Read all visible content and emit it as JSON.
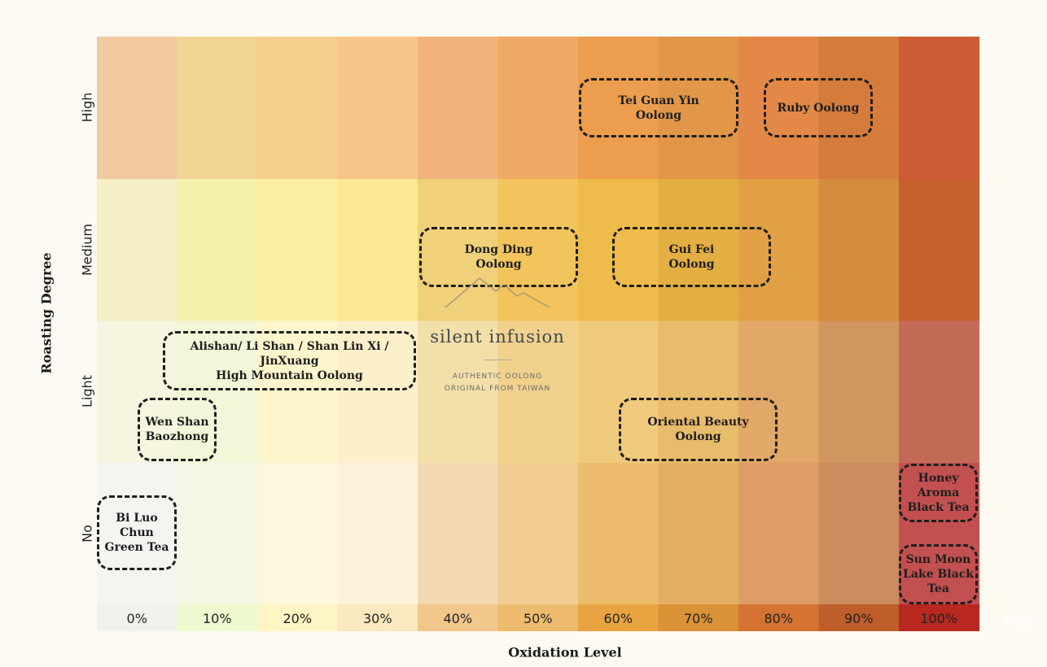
{
  "chart_data": {
    "type": "heatmap",
    "title": "",
    "xlabel": "Oxidation Level",
    "ylabel": "Roasting Degree",
    "x_ticks": [
      "0%",
      "10%",
      "20%",
      "30%",
      "40%",
      "50%",
      "60%",
      "70%",
      "80%",
      "90%",
      "100%"
    ],
    "y_categories": [
      "No",
      "Light",
      "Medium",
      "High"
    ],
    "cell_colors": [
      [
        "#f4f4f1",
        "#f3f7e3",
        "#fdf8dc",
        "#fdf3d8",
        "#f2d9b2",
        "#f0cc90",
        "#ebbc6c",
        "#e2b060",
        "#de9c66",
        "#cb8c5e",
        "#c25050"
      ],
      [
        "#f6f5df",
        "#f2f8d7",
        "#fdf6cc",
        "#fcf0cb",
        "#f3dfa8",
        "#f1d18c",
        "#efca7c",
        "#e7bc6a",
        "#e2a867",
        "#d19660",
        "#c46b58"
      ],
      [
        "#f4efc7",
        "#f5f1ad",
        "#fbeea3",
        "#fbe993",
        "#f0d078",
        "#f2c45c",
        "#efbb4a",
        "#e3ae42",
        "#e2a045",
        "#d38d3c",
        "#c7602f"
      ],
      [
        "#f1ca9f",
        "#f0d494",
        "#f5cf8c",
        "#f5c688",
        "#f0b47a",
        "#eeaa66",
        "#ec9e4e",
        "#e19648",
        "#e38846",
        "#d57c3d",
        "#cd5d35"
      ]
    ],
    "tick_colors": [
      "#f1f1ec",
      "#eef9cf",
      "#fdf5c3",
      "#fbe8bf",
      "#f2c78a",
      "#eebb6e",
      "#e9a441",
      "#d99235",
      "#d67332",
      "#bf5e2a",
      "#b8281f"
    ],
    "grid": false,
    "teas": [
      {
        "name": "Tei Guan Yin\nOolong",
        "oxidation": [
          60,
          70
        ],
        "roast": "High"
      },
      {
        "name": "Ruby Oolong",
        "oxidation": [
          80,
          90
        ],
        "roast": "High"
      },
      {
        "name": "Dong Ding\nOolong",
        "oxidation": [
          40,
          50
        ],
        "roast": "Medium"
      },
      {
        "name": "Gui Fei\nOolong",
        "oxidation": [
          60,
          70
        ],
        "roast": "Medium"
      },
      {
        "name": "Alishan/ Li Shan / Shan Lin Xi /\nJinXuang\nHigh Mountain Oolong",
        "oxidation": [
          10,
          30
        ],
        "roast": "Light"
      },
      {
        "name": "Wen Shan\nBaozhong",
        "oxidation": [
          5,
          10
        ],
        "roast": "Light"
      },
      {
        "name": "Oriental Beauty\nOolong",
        "oxidation": [
          60,
          70
        ],
        "roast": "Light"
      },
      {
        "name": "Bi Luo\nChun\nGreen Tea",
        "oxidation": [
          0,
          0
        ],
        "roast": "No"
      },
      {
        "name": "Honey\nAroma\nBlack Tea",
        "oxidation": [
          100,
          100
        ],
        "roast": "No"
      },
      {
        "name": "Sun Moon\nLake Black\nTea",
        "oxidation": [
          100,
          100
        ],
        "roast": "No"
      }
    ]
  },
  "watermark": {
    "brand": "silent infusion",
    "tagline_1": "AUTHENTIC OOLONG",
    "tagline_2": "ORIGINAL FROM TAIWAN"
  },
  "footer": {
    "post_label": "Post"
  }
}
